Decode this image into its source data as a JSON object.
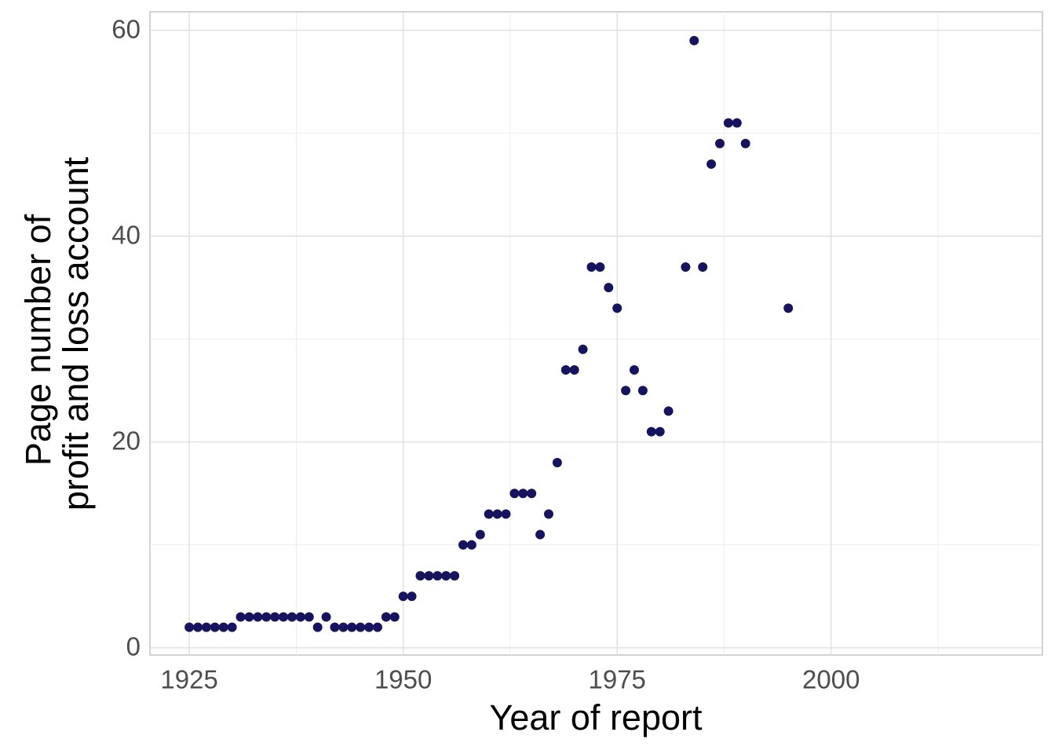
{
  "chart_data": {
    "type": "scatter",
    "xlabel": "Year of report",
    "ylabel": [
      "Page number of",
      "profit and loss account"
    ],
    "color": "#16145e",
    "grid": true,
    "xlim": [
      1920.4,
      2024.7
    ],
    "xticks": [
      1925,
      1950,
      1975,
      2000
    ],
    "ylim": [
      -0.7,
      61.8
    ],
    "yticks": [
      0,
      20,
      40,
      60
    ],
    "x": [
      1925,
      1926,
      1927,
      1928,
      1929,
      1930,
      1931,
      1932,
      1933,
      1934,
      1935,
      1936,
      1937,
      1938,
      1939,
      1940,
      1941,
      1942,
      1943,
      1944,
      1945,
      1946,
      1947,
      1948,
      1949,
      1950,
      1951,
      1952,
      1953,
      1954,
      1955,
      1956,
      1957,
      1958,
      1959,
      1960,
      1961,
      1962,
      1963,
      1964,
      1965,
      1966,
      1967,
      1968,
      1969,
      1970,
      1971,
      1972,
      1973,
      1974,
      1975,
      1976,
      1977,
      1978,
      1979,
      1980,
      1981,
      1983,
      1984,
      1985,
      1986,
      1987,
      1988,
      1989,
      1990,
      1995
    ],
    "values": [
      2,
      2,
      2,
      2,
      2,
      2,
      3,
      3,
      3,
      3,
      3,
      3,
      3,
      3,
      3,
      2,
      3,
      2,
      2,
      2,
      2,
      2,
      2,
      3,
      3,
      5,
      5,
      7,
      7,
      7,
      7,
      7,
      10,
      10,
      11,
      13,
      13,
      13,
      15,
      15,
      15,
      11,
      13,
      18,
      27,
      27,
      29,
      37,
      37,
      35,
      33,
      25,
      27,
      25,
      21,
      21,
      23,
      37,
      59,
      37,
      47,
      49,
      51,
      51,
      49,
      33
    ]
  }
}
